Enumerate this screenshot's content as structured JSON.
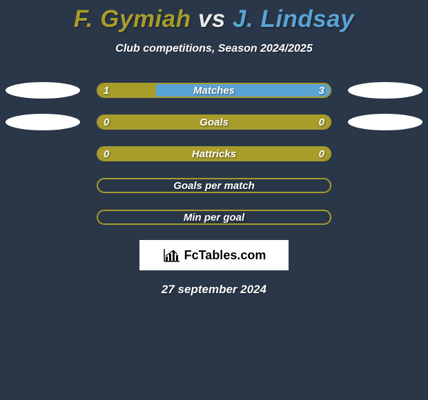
{
  "title": {
    "player1": "F. Gymiah",
    "vs": "vs",
    "player2": "J. Lindsay",
    "player1_color": "#a89c2b",
    "player2_color": "#5aa4d4"
  },
  "subtitle": "Club competitions, Season 2024/2025",
  "colors": {
    "background": "#2a3749",
    "accent_left": "#a89c2b",
    "accent_right": "#5aa4d4",
    "bar_empty": "#2a3749",
    "text": "#ffffff"
  },
  "rows": [
    {
      "label": "Matches",
      "left_value": "1",
      "right_value": "3",
      "left_pct": 25,
      "right_pct": 75,
      "left_color": "#a89c2b",
      "right_color": "#5aa4d4",
      "border_color": "#a89c2b",
      "show_ellipse_left": true,
      "show_ellipse_right": true
    },
    {
      "label": "Goals",
      "left_value": "0",
      "right_value": "0",
      "left_pct": 50,
      "right_pct": 50,
      "left_color": "#a89c2b",
      "right_color": "#a89c2b",
      "border_color": "#a89c2b",
      "show_ellipse_left": true,
      "show_ellipse_right": true
    },
    {
      "label": "Hattricks",
      "left_value": "0",
      "right_value": "0",
      "left_pct": 50,
      "right_pct": 50,
      "left_color": "#a89c2b",
      "right_color": "#a89c2b",
      "border_color": "#a89c2b",
      "show_ellipse_left": false,
      "show_ellipse_right": false
    },
    {
      "label": "Goals per match",
      "left_value": "",
      "right_value": "",
      "left_pct": 0,
      "right_pct": 0,
      "left_color": "#2a3749",
      "right_color": "#2a3749",
      "border_color": "#a89c2b",
      "show_ellipse_left": false,
      "show_ellipse_right": false
    },
    {
      "label": "Min per goal",
      "left_value": "",
      "right_value": "",
      "left_pct": 0,
      "right_pct": 0,
      "left_color": "#2a3749",
      "right_color": "#2a3749",
      "border_color": "#a89c2b",
      "show_ellipse_left": false,
      "show_ellipse_right": false
    }
  ],
  "logo_text": "FcTables.com",
  "date": "27 september 2024"
}
